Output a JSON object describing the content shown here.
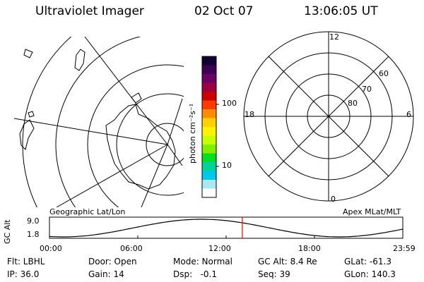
{
  "header": {
    "instrument": "Ultraviolet Imager",
    "date": "02 Oct 07",
    "time": "13:06:05 UT"
  },
  "geo_panel": {
    "label": "Geographic Lat/Lon"
  },
  "apex_panel": {
    "label": "Apex MLat/MLT",
    "mlt_labels": {
      "top": "12",
      "bottom": "0",
      "left": "18",
      "right": "6"
    },
    "lat_labels": [
      "60",
      "70",
      "80"
    ]
  },
  "colorbar": {
    "unit_label": "photon cm⁻²s⁻¹",
    "ticks": [
      "100",
      "10"
    ],
    "colors": [
      "#120030",
      "#3d0055",
      "#6b0065",
      "#9c0040",
      "#cc0000",
      "#ff3a00",
      "#ff8c00",
      "#ffd200",
      "#fff200",
      "#c8ff00",
      "#80f000",
      "#00e020",
      "#00d2a0",
      "#00c8e8",
      "#a8e8f0",
      "#ffffff"
    ]
  },
  "gc_alt_plot": {
    "ylabel": "GC Alt",
    "yticks": [
      "9.0",
      "1.8"
    ],
    "xticks": [
      "00:00",
      "06:00",
      "12:00",
      "18:00",
      "23:59"
    ],
    "marker_hour": 13.1,
    "marker_color": "#ff0000"
  },
  "footer": {
    "row1": [
      "Flt: LBHL",
      "Door: Open",
      "Mode: Normal",
      "GC Alt: 8.4 Re",
      "GLat: -61.3"
    ],
    "row2": [
      "IP: 36.0",
      "Gain: 14",
      "Dsp:   -0.1",
      "Seq: 39",
      "GLon: 140.3"
    ]
  }
}
